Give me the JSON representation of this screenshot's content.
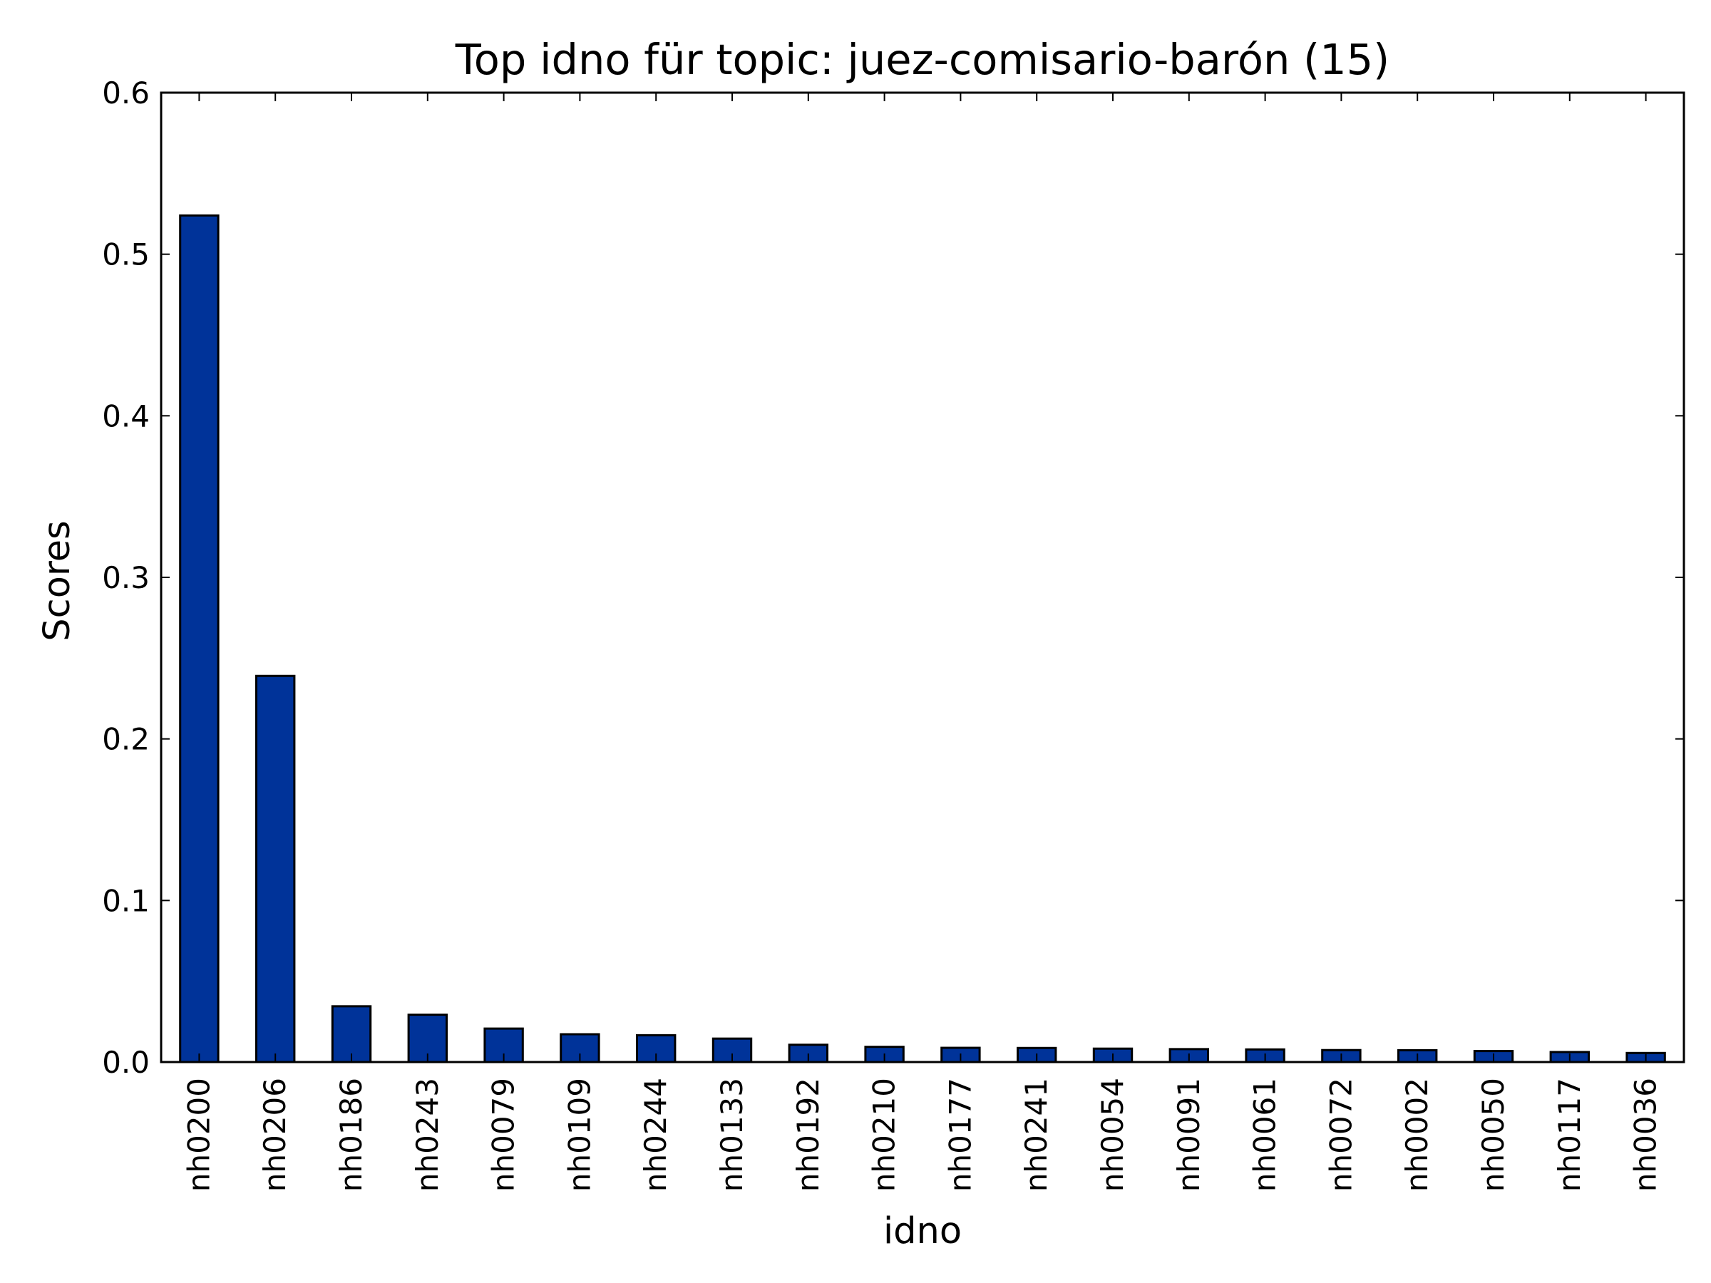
{
  "chart_data": {
    "type": "bar",
    "title": "Top idno für topic: juez-comisario-barón (15)",
    "xlabel": "idno",
    "ylabel": "Scores",
    "ylim": [
      0,
      0.6
    ],
    "yticks": [
      "0.0",
      "0.1",
      "0.2",
      "0.3",
      "0.4",
      "0.5",
      "0.6"
    ],
    "grid": false,
    "bar_color": "#003399",
    "categories": [
      "nh0200",
      "nh0206",
      "nh0186",
      "nh0243",
      "nh0079",
      "nh0109",
      "nh0244",
      "nh0133",
      "nh0192",
      "nh0210",
      "nh0177",
      "nh0241",
      "nh0054",
      "nh0091",
      "nh0061",
      "nh0072",
      "nh0002",
      "nh0050",
      "nh0117",
      "nh0036"
    ],
    "values": [
      0.524,
      0.239,
      0.0345,
      0.0293,
      0.0207,
      0.0172,
      0.0166,
      0.0145,
      0.0107,
      0.0094,
      0.0088,
      0.0087,
      0.0083,
      0.008,
      0.0078,
      0.0074,
      0.0073,
      0.0068,
      0.0062,
      0.0056
    ]
  }
}
